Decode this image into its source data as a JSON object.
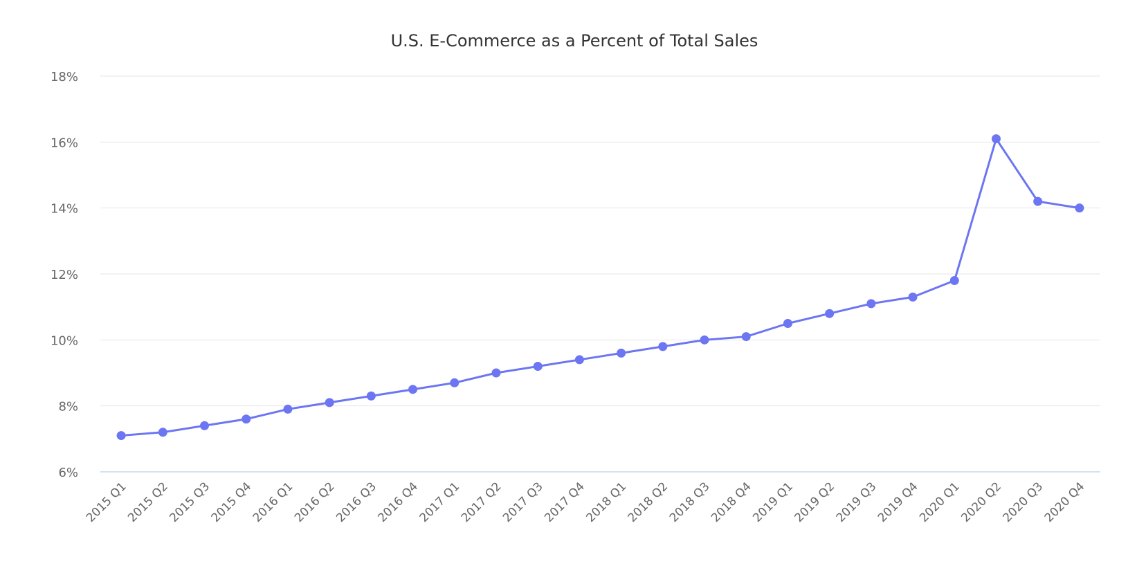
{
  "chart_data": {
    "type": "line",
    "title": "U.S. E-Commerce as a Percent of Total Sales",
    "xlabel": "",
    "ylabel": "",
    "ylim": [
      6,
      18
    ],
    "y_ticks": [
      6,
      8,
      10,
      12,
      14,
      16,
      18
    ],
    "y_tick_labels": [
      "6%",
      "8%",
      "10%",
      "12%",
      "14%",
      "16%",
      "18%"
    ],
    "categories": [
      "2015 Q1",
      "2015 Q2",
      "2015 Q3",
      "2015 Q4",
      "2016 Q1",
      "2016 Q2",
      "2016 Q3",
      "2016 Q4",
      "2017 Q1",
      "2017 Q2",
      "2017 Q3",
      "2017 Q4",
      "2018 Q1",
      "2018 Q2",
      "2018 Q3",
      "2018 Q4",
      "2019 Q1",
      "2019 Q2",
      "2019 Q3",
      "2019 Q4",
      "2020 Q1",
      "2020 Q2",
      "2020 Q3",
      "2020 Q4"
    ],
    "series": [
      {
        "values": [
          7.1,
          7.2,
          7.4,
          7.6,
          7.9,
          8.1,
          8.3,
          8.5,
          8.7,
          9.0,
          9.2,
          9.4,
          9.6,
          9.8,
          10.0,
          10.1,
          10.5,
          10.8,
          11.1,
          11.3,
          11.8,
          16.1,
          14.2,
          14.0
        ],
        "color": "#6c75f2"
      }
    ],
    "grid": true,
    "legend": "none",
    "colors": {
      "line": "#6c75f2",
      "grid": "#e6e6e6",
      "axis": "#ccd6eb",
      "text": "#333333",
      "tick_text": "#666666"
    }
  }
}
